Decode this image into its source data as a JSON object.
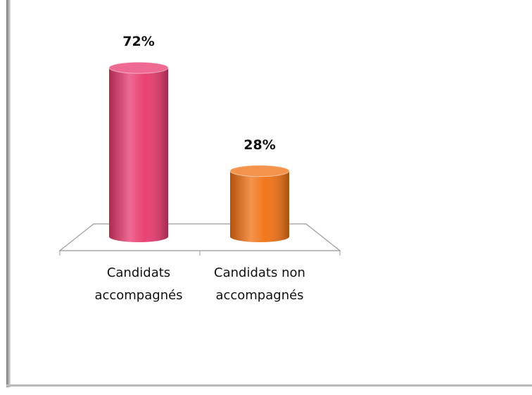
{
  "chart_data": {
    "type": "bar3d",
    "categories": [
      "Candidats accompagnés",
      "Candidats non accompagnés"
    ],
    "values": [
      72,
      28
    ],
    "value_labels": [
      "72%",
      "28%"
    ],
    "colors": [
      "#e8386c",
      "#f07010"
    ]
  }
}
